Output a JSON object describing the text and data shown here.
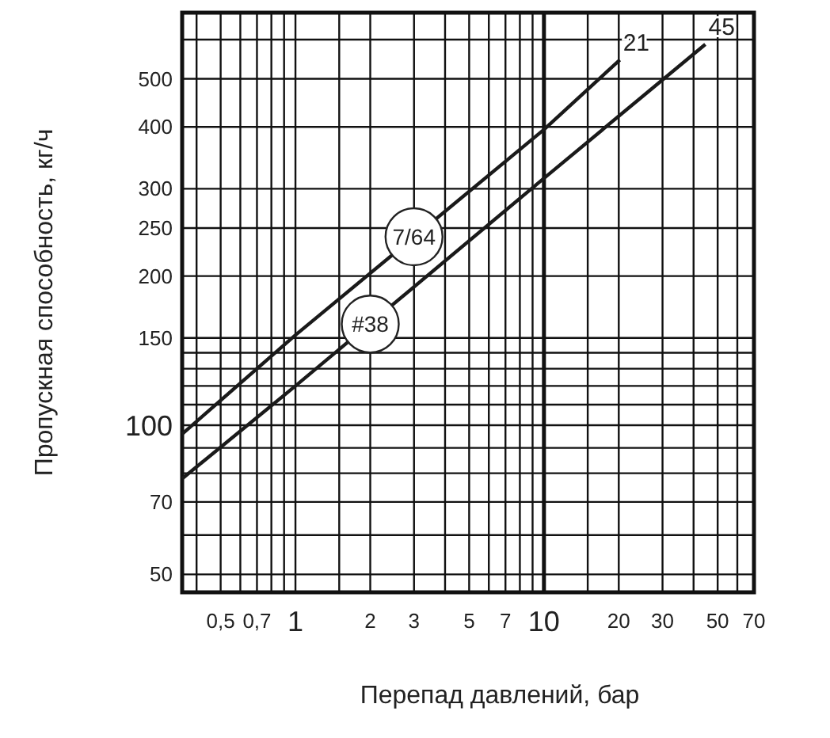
{
  "chart_data": {
    "type": "line",
    "xlabel": "Перепад давлений, бар",
    "ylabel": "Пропускная способность, кг/ч",
    "log": "xy",
    "grid": true,
    "marker": "none",
    "line_style": "solid",
    "xlim": [
      0.35,
      70
    ],
    "ylim": [
      46,
      680
    ],
    "xticks": [
      {
        "value": 0.4,
        "label": null
      },
      {
        "value": 0.5,
        "label": "0,5"
      },
      {
        "value": 0.6,
        "label": null
      },
      {
        "value": 0.7,
        "label": "0,7"
      },
      {
        "value": 0.8,
        "label": null
      },
      {
        "value": 0.9,
        "label": null
      },
      1,
      {
        "value": 1.5,
        "label": null
      },
      2,
      3,
      {
        "value": 4,
        "label": null
      },
      5,
      {
        "value": 6,
        "label": null
      },
      7,
      {
        "value": 8,
        "label": null
      },
      {
        "value": 9,
        "label": null
      },
      10,
      {
        "value": 15,
        "label": null
      },
      20,
      30,
      {
        "value": 40,
        "label": null
      },
      50,
      {
        "value": 60,
        "label": null
      },
      70
    ],
    "yticks": [
      50,
      {
        "value": 60,
        "label": null
      },
      70,
      {
        "value": 80,
        "label": null
      },
      {
        "value": 90,
        "label": null
      },
      100,
      {
        "value": 110,
        "label": null
      },
      {
        "value": 120,
        "label": null
      },
      {
        "value": 130,
        "label": null
      },
      {
        "value": 140,
        "label": null
      },
      150,
      200,
      250,
      300,
      400,
      500,
      {
        "value": 600,
        "label": null
      }
    ],
    "ref_lines": [
      {
        "axis": "x",
        "value": 10
      }
    ],
    "series": [
      {
        "name": "21",
        "color": "#1a1a1a",
        "x": [
          0.35,
          1,
          10,
          20.2
        ],
        "values": [
          96,
          152,
          395,
          546
        ]
      },
      {
        "name": "45",
        "color": "#1a1a1a",
        "x": [
          0.35,
          1,
          10,
          44.6
        ],
        "values": [
          78,
          120,
          315,
          587
        ]
      }
    ],
    "annotations": [
      {
        "text": "7/64",
        "x": 3,
        "y": 240
      },
      {
        "text": "#38",
        "x": 2,
        "y": 160
      }
    ]
  }
}
